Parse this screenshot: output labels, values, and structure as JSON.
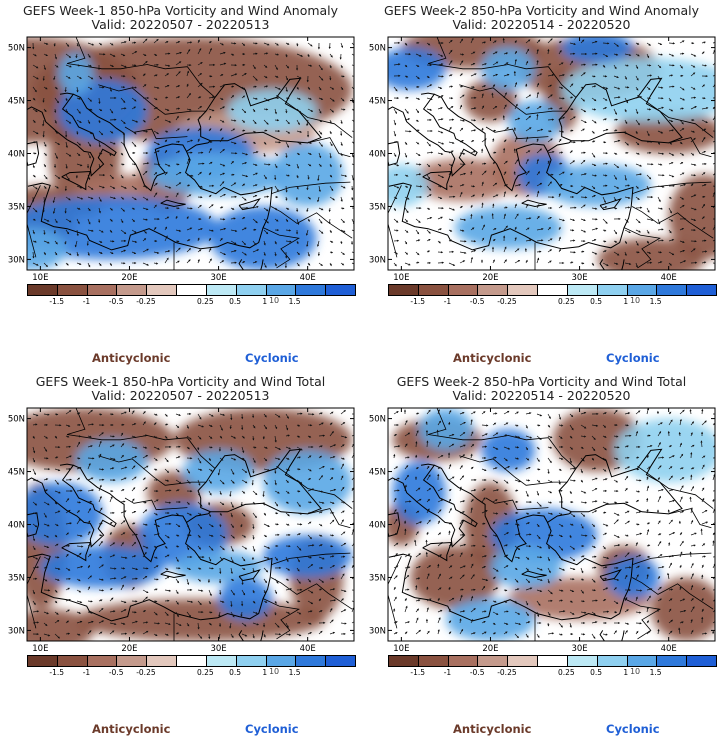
{
  "panels": [
    {
      "title": "GEFS Week-1 850-hPa Vorticity and Wind Anomaly",
      "valid": "Valid: 20220507 - 20220513"
    },
    {
      "title": "GEFS Week-2 850-hPa Vorticity and Wind Anomaly",
      "valid": "Valid: 20220514 - 20220520"
    },
    {
      "title": "GEFS Week-1 850-hPa Vorticity and Wind Total",
      "valid": "Valid: 20220507 - 20220513"
    },
    {
      "title": "GEFS Week-2 850-hPa Vorticity and Wind Total",
      "valid": "Valid: 20220514 - 20220520"
    }
  ],
  "map": {
    "lat_labels": [
      "50N",
      "45N",
      "40N",
      "35N",
      "30N"
    ],
    "lon_labels": [
      "10E",
      "20E",
      "30E",
      "40E"
    ]
  },
  "colorbar": {
    "tick_labels": [
      "-1.5",
      "-1",
      "-0.5",
      "-0.25",
      "0.25",
      "0.5",
      "1",
      "1.5"
    ],
    "unit_label": "10",
    "colors": [
      "#6b3a2a",
      "#8a5240",
      "#a87060",
      "#c49a8c",
      "#e3c8bd",
      "#ffffff",
      "#bde9f5",
      "#8fd0f0",
      "#5aa7e6",
      "#2f79db",
      "#1f5fd6"
    ]
  },
  "legend": {
    "anticyclonic": "Anticyclonic",
    "cyclonic": "Cyclonic"
  },
  "colors": {
    "brown": "#6b3a2a",
    "blue": "#1f5fd6"
  }
}
